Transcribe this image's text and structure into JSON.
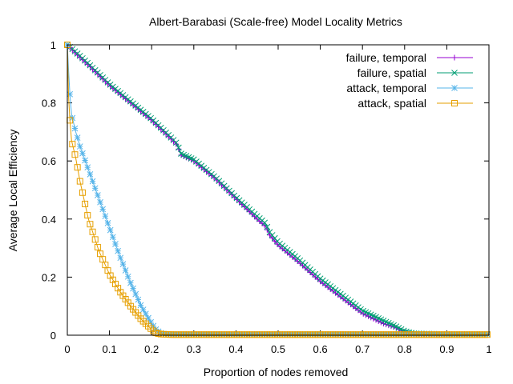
{
  "chart_data": {
    "type": "line",
    "title": "Albert-Barabasi (Scale-free) Model Locality Metrics",
    "xlabel": "Proportion of nodes removed",
    "ylabel": "Average Local Efficiency",
    "xlim": [
      0,
      1
    ],
    "ylim": [
      0,
      1
    ],
    "x_ticks": [
      "0",
      "0.1",
      "0.2",
      "0.3",
      "0.4",
      "0.5",
      "0.6",
      "0.7",
      "0.8",
      "0.9",
      "1"
    ],
    "y_ticks": [
      "0",
      "0.2",
      "0.4",
      "0.6",
      "0.8",
      "1"
    ],
    "legend_position": "top-right",
    "grid": false,
    "series": [
      {
        "name": "failure, temporal",
        "color": "#9400d3",
        "marker": "plus",
        "x": [
          0,
          0.02,
          0.05,
          0.1,
          0.15,
          0.2,
          0.25,
          0.26,
          0.27,
          0.3,
          0.35,
          0.4,
          0.45,
          0.47,
          0.48,
          0.5,
          0.55,
          0.6,
          0.65,
          0.7,
          0.75,
          0.78,
          0.8,
          0.82,
          0.9,
          1.0
        ],
        "y": [
          1.0,
          0.97,
          0.93,
          0.86,
          0.8,
          0.74,
          0.67,
          0.655,
          0.62,
          0.6,
          0.54,
          0.47,
          0.4,
          0.375,
          0.345,
          0.31,
          0.25,
          0.185,
          0.13,
          0.075,
          0.04,
          0.025,
          0.01,
          0.004,
          0.002,
          0.002
        ]
      },
      {
        "name": "failure, spatial",
        "color": "#009e73",
        "marker": "cross",
        "x": [
          0,
          0.02,
          0.05,
          0.1,
          0.15,
          0.2,
          0.25,
          0.26,
          0.27,
          0.3,
          0.35,
          0.4,
          0.45,
          0.47,
          0.48,
          0.5,
          0.55,
          0.6,
          0.65,
          0.7,
          0.75,
          0.78,
          0.8,
          0.82,
          0.9,
          1.0
        ],
        "y": [
          1.0,
          0.975,
          0.935,
          0.865,
          0.805,
          0.745,
          0.675,
          0.66,
          0.625,
          0.605,
          0.545,
          0.475,
          0.41,
          0.385,
          0.355,
          0.32,
          0.26,
          0.195,
          0.14,
          0.085,
          0.05,
          0.03,
          0.014,
          0.006,
          0.003,
          0.003
        ]
      },
      {
        "name": "attack, temporal",
        "color": "#56b4e9",
        "marker": "star",
        "x": [
          0,
          0.003,
          0.006,
          0.01,
          0.02,
          0.03,
          0.05,
          0.075,
          0.1,
          0.125,
          0.15,
          0.175,
          0.2,
          0.21,
          0.22,
          0.23,
          0.25,
          0.3,
          0.4,
          0.5,
          0.6,
          0.7,
          0.8,
          0.9,
          1.0
        ],
        "y": [
          1.0,
          0.91,
          0.83,
          0.76,
          0.7,
          0.65,
          0.57,
          0.47,
          0.37,
          0.27,
          0.18,
          0.1,
          0.04,
          0.02,
          0.008,
          0.004,
          0.003,
          0.003,
          0.003,
          0.003,
          0.003,
          0.003,
          0.003,
          0.003,
          0.003
        ]
      },
      {
        "name": "attack, spatial",
        "color": "#e69f00",
        "marker": "square",
        "x": [
          0,
          0.003,
          0.006,
          0.01,
          0.02,
          0.03,
          0.05,
          0.075,
          0.1,
          0.125,
          0.15,
          0.175,
          0.2,
          0.21,
          0.22,
          0.23,
          0.25,
          0.3,
          0.4,
          0.5,
          0.6,
          0.7,
          0.8,
          0.9,
          1.0
        ],
        "y": [
          1.0,
          0.82,
          0.74,
          0.67,
          0.61,
          0.53,
          0.4,
          0.29,
          0.21,
          0.15,
          0.1,
          0.055,
          0.02,
          0.008,
          0.004,
          0.003,
          0.002,
          0.002,
          0.002,
          0.002,
          0.002,
          0.002,
          0.002,
          0.002,
          0.002
        ]
      }
    ]
  }
}
